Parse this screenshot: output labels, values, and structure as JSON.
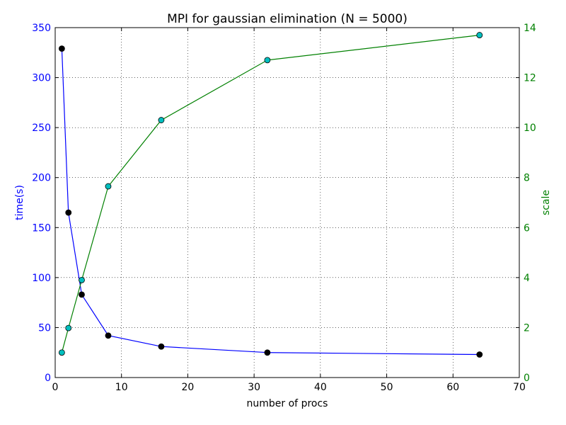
{
  "chart_data": {
    "type": "line",
    "title": "MPI for gaussian elimination (N = 5000)",
    "xlabel": "number of procs",
    "ylabel_left": "time(s)",
    "ylabel_right": "scale",
    "xlim": [
      0,
      70
    ],
    "ylim_left": [
      0,
      350
    ],
    "ylim_right": [
      0,
      14
    ],
    "xticks": [
      "0",
      "10",
      "20",
      "30",
      "40",
      "50",
      "60",
      "70"
    ],
    "yticks_left": [
      "0",
      "50",
      "100",
      "150",
      "200",
      "250",
      "300",
      "350"
    ],
    "yticks_right": [
      "0",
      "2",
      "4",
      "6",
      "8",
      "10",
      "12",
      "14"
    ],
    "grid": true,
    "colors": {
      "time_line": "#0000ff",
      "time_marker": "#000000",
      "scale_line": "#008000",
      "scale_marker": "#00bfbf"
    },
    "x": [
      1,
      2,
      4,
      8,
      16,
      32,
      64
    ],
    "series": [
      {
        "axis": "left",
        "values": [
          329,
          165,
          83,
          42,
          31,
          25,
          23
        ]
      },
      {
        "axis": "right",
        "values": [
          1.0,
          1.98,
          3.9,
          7.65,
          10.3,
          12.7,
          13.7
        ]
      }
    ]
  }
}
